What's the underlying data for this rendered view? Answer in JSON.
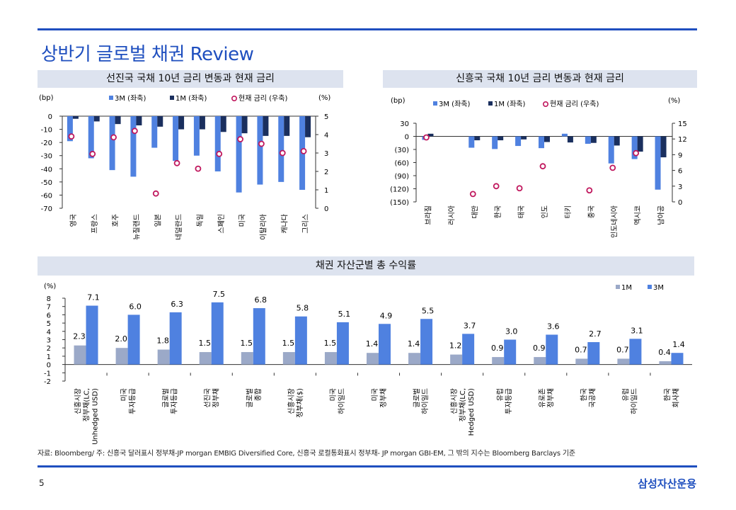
{
  "page": {
    "title": "상반기 글로벌 채권 Review",
    "footnote": "자료: Bloomberg/ 주: 신흥국 달러표시 정부채-JP morgan EMBIG Diversified Core, 신흥국 로컬통화표시 정부채- JP morgan GBI-EM, 그 밖의 지수는 Bloomberg Barclays 기준",
    "page_number": "5",
    "brand": "삼성자산운용"
  },
  "colors": {
    "accent": "#1f4fbf",
    "bar3m": "#4f81e0",
    "bar1m_dark": "#1a2f5e",
    "bar1m_light": "#9ba9c8",
    "rate": "#c0175d",
    "header_bg": "#dde3ef"
  },
  "chart_data": [
    {
      "type": "bar",
      "title": "선진국 국채 10년 금리 변동과 현재 금리",
      "ylabel_left": "(bp)",
      "ylabel_right": "(%)",
      "legend": [
        "3M (좌축)",
        "1M (좌축)",
        "현재 금리 (우축)"
      ],
      "categories": [
        "영국",
        "프랑스",
        "호주",
        "뉴질랜드",
        "일본",
        "네덜란드",
        "독일",
        "스페인",
        "미국",
        "이탈리아",
        "캐나다",
        "그리스"
      ],
      "ylim": [
        -70,
        0
      ],
      "y2lim": [
        0,
        5
      ],
      "yticks": [
        "0",
        "-10",
        "-20",
        "-30",
        "-40",
        "-50",
        "-60",
        "-70"
      ],
      "y2ticks": [
        "5",
        "4",
        "3",
        "2",
        "1",
        "0"
      ],
      "series": [
        {
          "name": "3M (좌축)",
          "values": [
            -19,
            -32,
            -41,
            -46,
            -24,
            -34,
            -30,
            -42,
            -58,
            -52,
            -50,
            -56
          ]
        },
        {
          "name": "1M (좌축)",
          "values": [
            -2,
            -4,
            -6,
            -7,
            -8,
            -10,
            -10,
            -12,
            -13,
            -15,
            -15,
            -16
          ]
        },
        {
          "name": "현재 금리 (우축)",
          "axis": "right",
          "values": [
            3.9,
            2.95,
            3.85,
            4.2,
            0.8,
            2.45,
            2.15,
            2.95,
            3.75,
            3.5,
            3.0,
            3.1
          ]
        }
      ]
    },
    {
      "type": "bar",
      "title": "신흥국 국채 10년 금리 변동과 현재 금리",
      "ylabel_left": "(bp)",
      "ylabel_right": "(%)",
      "legend": [
        "3M (좌축)",
        "1M (좌축)",
        "현재 금리 (우축)"
      ],
      "categories": [
        "브라질",
        "러시아",
        "대만",
        "한국",
        "태국",
        "인도",
        "터키",
        "중국",
        "인도네시아",
        "멕시코",
        "남아공"
      ],
      "ylim": [
        -150,
        30
      ],
      "y2lim": [
        0,
        15
      ],
      "yticks": [
        "30",
        "0",
        "(30)",
        "(60)",
        "(90)",
        "(120)",
        "(150)"
      ],
      "y2ticks": [
        "15",
        "12",
        "9",
        "6",
        "3",
        "0"
      ],
      "series": [
        {
          "name": "3M (좌축)",
          "values": [
            -8,
            0,
            -26,
            -29,
            -22,
            -27,
            6,
            -17,
            -62,
            -52,
            -122
          ]
        },
        {
          "name": "1M (좌축)",
          "values": [
            6,
            0,
            -9,
            -9,
            -7,
            -13,
            -14,
            -15,
            -21,
            -35,
            -48
          ]
        },
        {
          "name": "현재 금리 (우축)",
          "axis": "right",
          "values": [
            12.3,
            null,
            1.5,
            3.0,
            2.6,
            6.8,
            null,
            2.2,
            6.5,
            9.3,
            null
          ]
        }
      ]
    },
    {
      "type": "bar",
      "title": "채권 자산군별 총 수익률",
      "ylabel": "(%)",
      "legend": [
        "1M",
        "3M"
      ],
      "categories": [
        [
          "신흥시장",
          "정부채(LC,",
          "Unhedged USD)"
        ],
        [
          "미국",
          "투자등급"
        ],
        [
          "글로벌",
          "투자등급"
        ],
        [
          "선진국",
          "정부채"
        ],
        [
          "글로벌",
          "종합"
        ],
        [
          "신흥시장",
          "정부채($)"
        ],
        [
          "미국",
          "하이일드"
        ],
        [
          "미국",
          "정부채"
        ],
        [
          "글로벌",
          "하이일드"
        ],
        [
          "신흥시장",
          "정부채(LC,",
          "Hedged USD)"
        ],
        [
          "유럽",
          "투자등급"
        ],
        [
          "유로존",
          "정부채"
        ],
        [
          "한국",
          "국공채"
        ],
        [
          "유럽",
          "하이일드"
        ],
        [
          "한국",
          "회사채"
        ]
      ],
      "ylim": [
        -2,
        8
      ],
      "yticks": [
        "8",
        "7",
        "6",
        "5",
        "4",
        "3",
        "2",
        "1",
        "0",
        "-1",
        "-2"
      ],
      "series": [
        {
          "name": "1M",
          "values": [
            2.3,
            2.0,
            1.8,
            1.5,
            1.5,
            1.5,
            1.5,
            1.4,
            1.4,
            1.2,
            0.9,
            0.9,
            0.7,
            0.7,
            0.4
          ]
        },
        {
          "name": "3M",
          "values": [
            7.1,
            6.0,
            6.3,
            7.5,
            6.8,
            5.8,
            5.1,
            4.9,
            5.5,
            3.7,
            3.0,
            3.6,
            2.7,
            3.1,
            1.4
          ]
        }
      ],
      "labels_1m": [
        "2.3",
        "2.0",
        "1.8",
        "1.5",
        "1.5",
        "1.5",
        "1.5",
        "1.4",
        "1.4",
        "1.2",
        "0.9",
        "0.9",
        "0.7",
        "0.7",
        "0.4"
      ],
      "labels_3m": [
        "7.1",
        "6.0",
        "6.3",
        "7.5",
        "6.8",
        "5.8",
        "5.1",
        "4.9",
        "5.5",
        "3.7",
        "3.0",
        "3.6",
        "2.7",
        "3.1",
        "1.4"
      ]
    }
  ]
}
